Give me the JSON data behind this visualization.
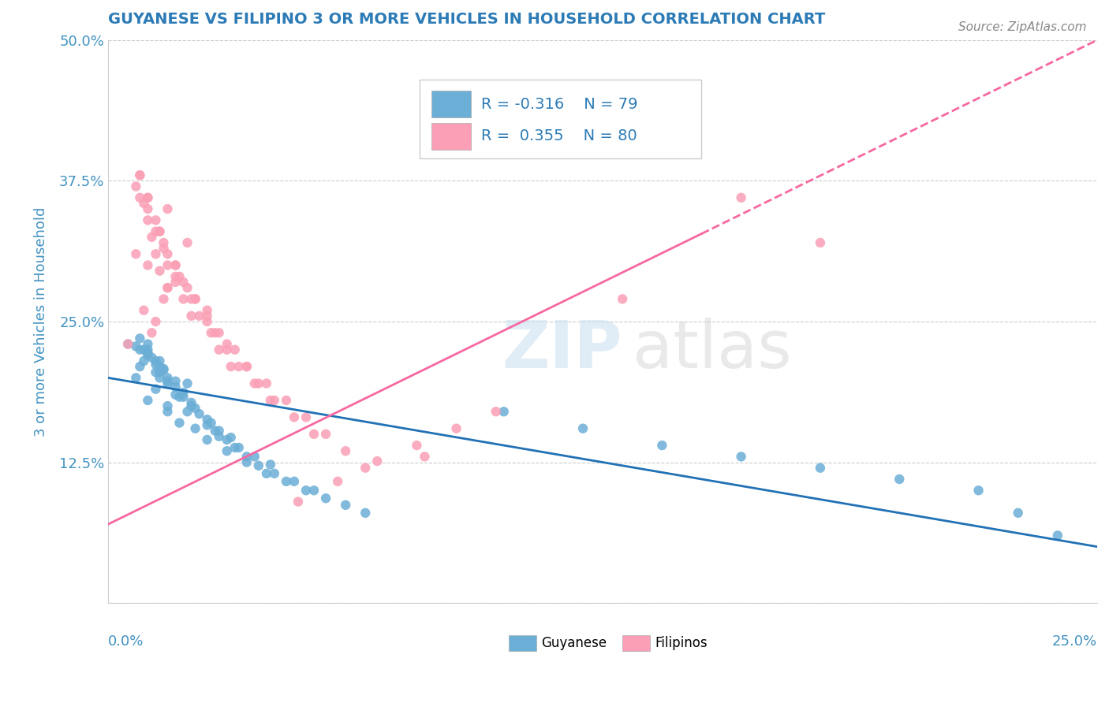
{
  "title": "GUYANESE VS FILIPINO 3 OR MORE VEHICLES IN HOUSEHOLD CORRELATION CHART",
  "source": "Source: ZipAtlas.com",
  "ylabel": "3 or more Vehicles in Household",
  "xmin": 0.0,
  "xmax": 0.25,
  "ymin": 0.0,
  "ymax": 0.5,
  "blue_color": "#6baed6",
  "pink_color": "#fa9fb5",
  "blue_line_color": "#2171b5",
  "pink_line_color": "#f768a1",
  "title_color": "#2c7bb6",
  "axis_label_color": "#4393c3",
  "legend_text_color": "#2c7bb6",
  "guyanese_x": [
    0.007,
    0.01,
    0.008,
    0.012,
    0.015,
    0.01,
    0.013,
    0.005,
    0.018,
    0.009,
    0.02,
    0.015,
    0.012,
    0.008,
    0.022,
    0.017,
    0.013,
    0.01,
    0.025,
    0.02,
    0.015,
    0.012,
    0.01,
    0.008,
    0.03,
    0.025,
    0.018,
    0.014,
    0.01,
    0.007,
    0.035,
    0.028,
    0.022,
    0.017,
    0.013,
    0.009,
    0.04,
    0.032,
    0.025,
    0.019,
    0.014,
    0.01,
    0.045,
    0.035,
    0.027,
    0.021,
    0.015,
    0.011,
    0.05,
    0.038,
    0.03,
    0.023,
    0.017,
    0.012,
    0.055,
    0.042,
    0.033,
    0.026,
    0.019,
    0.013,
    0.06,
    0.047,
    0.037,
    0.028,
    0.021,
    0.015,
    0.065,
    0.052,
    0.041,
    0.031,
    0.1,
    0.12,
    0.14,
    0.16,
    0.18,
    0.2,
    0.22,
    0.23,
    0.24
  ],
  "guyanese_y": [
    0.2,
    0.18,
    0.21,
    0.19,
    0.17,
    0.22,
    0.2,
    0.23,
    0.16,
    0.215,
    0.195,
    0.175,
    0.205,
    0.225,
    0.155,
    0.185,
    0.21,
    0.23,
    0.145,
    0.17,
    0.195,
    0.215,
    0.225,
    0.235,
    0.135,
    0.158,
    0.183,
    0.207,
    0.222,
    0.228,
    0.125,
    0.148,
    0.173,
    0.197,
    0.215,
    0.225,
    0.115,
    0.138,
    0.163,
    0.187,
    0.208,
    0.222,
    0.108,
    0.13,
    0.153,
    0.178,
    0.2,
    0.218,
    0.1,
    0.122,
    0.145,
    0.168,
    0.192,
    0.212,
    0.093,
    0.115,
    0.138,
    0.16,
    0.183,
    0.205,
    0.087,
    0.108,
    0.13,
    0.153,
    0.175,
    0.197,
    0.08,
    0.1,
    0.123,
    0.147,
    0.17,
    0.155,
    0.14,
    0.13,
    0.12,
    0.11,
    0.1,
    0.08,
    0.06
  ],
  "filipino_x": [
    0.005,
    0.008,
    0.01,
    0.012,
    0.015,
    0.007,
    0.009,
    0.011,
    0.014,
    0.017,
    0.02,
    0.015,
    0.012,
    0.008,
    0.022,
    0.017,
    0.013,
    0.01,
    0.025,
    0.02,
    0.015,
    0.012,
    0.01,
    0.008,
    0.03,
    0.025,
    0.018,
    0.014,
    0.01,
    0.007,
    0.035,
    0.028,
    0.022,
    0.017,
    0.013,
    0.009,
    0.04,
    0.032,
    0.025,
    0.019,
    0.014,
    0.01,
    0.045,
    0.035,
    0.027,
    0.021,
    0.015,
    0.011,
    0.05,
    0.038,
    0.03,
    0.023,
    0.017,
    0.012,
    0.055,
    0.042,
    0.033,
    0.026,
    0.019,
    0.013,
    0.06,
    0.047,
    0.037,
    0.028,
    0.021,
    0.015,
    0.065,
    0.052,
    0.041,
    0.031,
    0.18,
    0.08,
    0.13,
    0.16,
    0.048,
    0.058,
    0.068,
    0.078,
    0.088,
    0.098
  ],
  "filipino_y": [
    0.23,
    0.38,
    0.3,
    0.25,
    0.28,
    0.31,
    0.26,
    0.24,
    0.27,
    0.29,
    0.32,
    0.35,
    0.33,
    0.36,
    0.27,
    0.3,
    0.33,
    0.36,
    0.25,
    0.28,
    0.31,
    0.34,
    0.36,
    0.38,
    0.23,
    0.26,
    0.29,
    0.32,
    0.35,
    0.37,
    0.21,
    0.24,
    0.27,
    0.3,
    0.33,
    0.355,
    0.195,
    0.225,
    0.255,
    0.285,
    0.315,
    0.34,
    0.18,
    0.21,
    0.24,
    0.27,
    0.3,
    0.325,
    0.165,
    0.195,
    0.225,
    0.255,
    0.285,
    0.31,
    0.15,
    0.18,
    0.21,
    0.24,
    0.27,
    0.295,
    0.135,
    0.165,
    0.195,
    0.225,
    0.255,
    0.28,
    0.12,
    0.15,
    0.18,
    0.21,
    0.32,
    0.13,
    0.27,
    0.36,
    0.09,
    0.108,
    0.126,
    0.14,
    0.155,
    0.17
  ]
}
